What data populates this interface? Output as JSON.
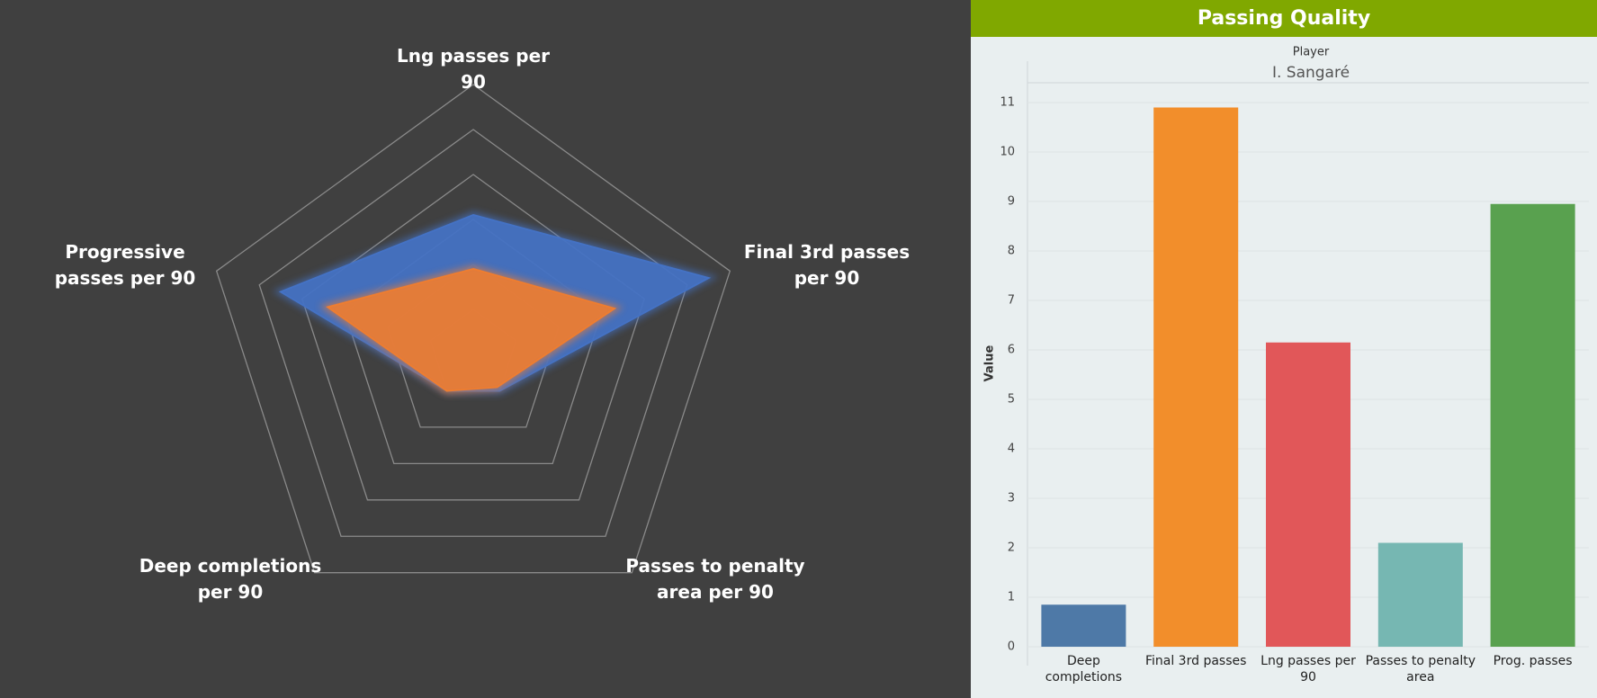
{
  "chart_data": [
    {
      "type": "radar",
      "categories": [
        "Lng passes per 90",
        "Final 3rd passes per 90",
        "Passes to penalty area per 90",
        "Deep completions per 90",
        "Progressive passes per 90"
      ],
      "series": [
        {
          "color": "#4472c4",
          "values": [
            3.1,
            5.5,
            1.0,
            1.0,
            4.5
          ]
        },
        {
          "color": "#ed7d31",
          "values": [
            1.9,
            3.3,
            0.9,
            1.0,
            3.4
          ]
        }
      ],
      "rlim": [
        0,
        6
      ],
      "rticks": [
        1,
        2,
        3,
        4,
        5,
        6
      ],
      "grid": true
    },
    {
      "type": "bar",
      "title": "Passing Quality",
      "facet_label": "Player",
      "facet": "I. Sangaré",
      "y_label": "Value",
      "categories": [
        "Deep completions",
        "Final 3rd passes",
        "Lng passes per 90",
        "Passes to penalty area",
        "Prog. passes"
      ],
      "values": [
        0.85,
        10.9,
        6.15,
        2.1,
        8.95
      ],
      "colors": [
        "#4e79a7",
        "#f28e2b",
        "#e15759",
        "#76b7b2",
        "#59a14f"
      ],
      "ylim": [
        0,
        11
      ],
      "yticks": [
        0,
        1,
        2,
        3,
        4,
        5,
        6,
        7,
        8,
        9,
        10,
        11
      ],
      "grid": true
    }
  ]
}
